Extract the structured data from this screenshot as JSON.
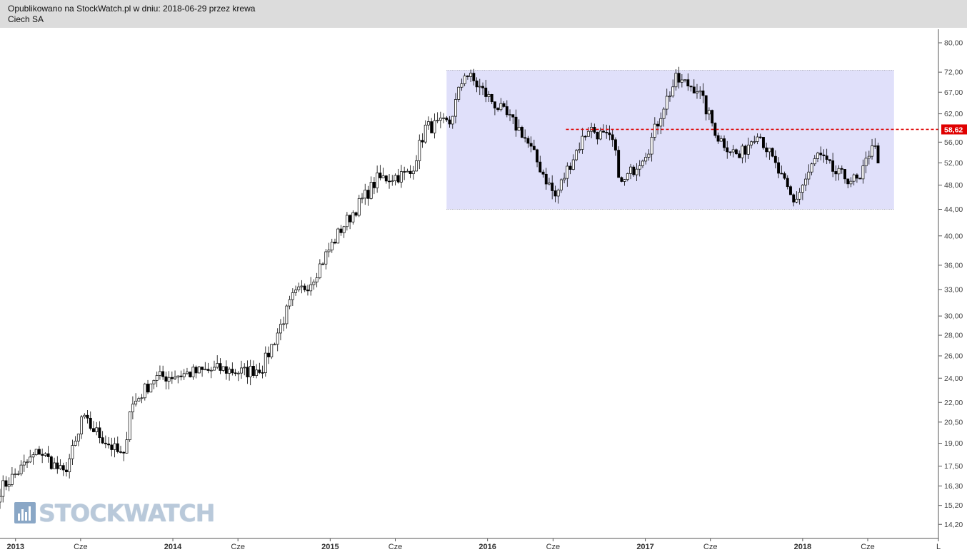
{
  "header": {
    "line1": "Opublikowano na StockWatch.pl w dniu: 2018-06-29 przez krewa",
    "line2": "Ciech SA"
  },
  "watermark": {
    "text": "STOCKWATCH",
    "icon": "bar-chart-icon"
  },
  "chart_data": {
    "type": "candlestick",
    "title": "Ciech SA",
    "y_scale": "log",
    "ylim": [
      13.85,
      82.5
    ],
    "xlim": [
      "2012-11-26",
      "2018-11-12"
    ],
    "y_ticks": [
      {
        "v": 80,
        "label": "80,00"
      },
      {
        "v": 72,
        "label": "72,00"
      },
      {
        "v": 67,
        "label": "67,00"
      },
      {
        "v": 62,
        "label": "62,00"
      },
      {
        "v": 56,
        "label": "56,00"
      },
      {
        "v": 52,
        "label": "52,00"
      },
      {
        "v": 48,
        "label": "48,00"
      },
      {
        "v": 44,
        "label": "44,00"
      },
      {
        "v": 40,
        "label": "40,00"
      },
      {
        "v": 36,
        "label": "36,00"
      },
      {
        "v": 33,
        "label": "33,00"
      },
      {
        "v": 30,
        "label": "30,00"
      },
      {
        "v": 28,
        "label": "28,00"
      },
      {
        "v": 26,
        "label": "26,00"
      },
      {
        "v": 24,
        "label": "24,00"
      },
      {
        "v": 22,
        "label": "22,00"
      },
      {
        "v": 20.5,
        "label": "20,50"
      },
      {
        "v": 19,
        "label": "19,00"
      },
      {
        "v": 17.5,
        "label": "17,50"
      },
      {
        "v": 16.3,
        "label": "16,30"
      },
      {
        "v": 15.2,
        "label": "15,20"
      },
      {
        "v": 14.2,
        "label": "14,20"
      }
    ],
    "x_ticks": [
      {
        "date": "2013-01-01",
        "label": "2013",
        "year": true
      },
      {
        "date": "2013-06-01",
        "label": "Cze",
        "year": false
      },
      {
        "date": "2014-01-01",
        "label": "2014",
        "year": true
      },
      {
        "date": "2014-06-01",
        "label": "Cze",
        "year": false
      },
      {
        "date": "2015-01-01",
        "label": "2015",
        "year": true
      },
      {
        "date": "2015-06-01",
        "label": "Cze",
        "year": false
      },
      {
        "date": "2016-01-01",
        "label": "2016",
        "year": true
      },
      {
        "date": "2016-06-01",
        "label": "Cze",
        "year": false
      },
      {
        "date": "2017-01-01",
        "label": "2017",
        "year": true
      },
      {
        "date": "2017-06-01",
        "label": "Cze",
        "year": false
      },
      {
        "date": "2018-01-01",
        "label": "2018",
        "year": true
      },
      {
        "date": "2018-06-01",
        "label": "Cze",
        "year": false
      },
      {
        "date": "2018-11-12",
        "label": "L",
        "year": false
      }
    ],
    "price_label": {
      "value": 58.62,
      "label": "58,62",
      "color": "#e00000"
    },
    "resistance_line": {
      "value": 58.62,
      "from": "2016-07-01",
      "color": "#e00000",
      "style": "dashed"
    },
    "range_box": {
      "from": "2015-09-28",
      "to": "2018-08-01",
      "low": 44.0,
      "high": 72.5,
      "fill": "#e0e0fa"
    },
    "weekly_closes": [
      {
        "date": "2012-11-26",
        "close": 16.1
      },
      {
        "date": "2013-02-25",
        "close": 18.5
      },
      {
        "date": "2013-04-22",
        "close": 17.0
      },
      {
        "date": "2013-05-27",
        "close": 19.5
      },
      {
        "date": "2013-06-03",
        "close": 20.8
      },
      {
        "date": "2013-09-09",
        "close": 18.0
      },
      {
        "date": "2013-09-23",
        "close": 21.5
      },
      {
        "date": "2013-11-18",
        "close": 24.0
      },
      {
        "date": "2014-04-21",
        "close": 24.8
      },
      {
        "date": "2014-06-16",
        "close": 24.5
      },
      {
        "date": "2014-07-28",
        "close": 25.0
      },
      {
        "date": "2014-10-06",
        "close": 32.0
      },
      {
        "date": "2014-11-17",
        "close": 34.0
      },
      {
        "date": "2015-01-26",
        "close": 41.0
      },
      {
        "date": "2015-04-20",
        "close": 49.0
      },
      {
        "date": "2015-07-06",
        "close": 50.0
      },
      {
        "date": "2015-08-10",
        "close": 59.0
      },
      {
        "date": "2015-10-05",
        "close": 60.0
      },
      {
        "date": "2015-11-09",
        "close": 72.0
      },
      {
        "date": "2016-03-21",
        "close": 58.0
      },
      {
        "date": "2016-06-06",
        "close": 46.0
      },
      {
        "date": "2016-07-11",
        "close": 52.0
      },
      {
        "date": "2016-08-22",
        "close": 59.0
      },
      {
        "date": "2016-10-17",
        "close": 56.0
      },
      {
        "date": "2016-11-07",
        "close": 48.0
      },
      {
        "date": "2017-01-09",
        "close": 55.0
      },
      {
        "date": "2017-02-13",
        "close": 64.0
      },
      {
        "date": "2017-03-13",
        "close": 70.0
      },
      {
        "date": "2017-05-01",
        "close": 68.0
      },
      {
        "date": "2017-06-19",
        "close": 57.0
      },
      {
        "date": "2017-08-07",
        "close": 53.0
      },
      {
        "date": "2017-09-18",
        "close": 58.5
      },
      {
        "date": "2017-10-23",
        "close": 52.5
      },
      {
        "date": "2017-12-11",
        "close": 45.0
      },
      {
        "date": "2018-02-05",
        "close": 53.5
      },
      {
        "date": "2018-03-19",
        "close": 50.0
      },
      {
        "date": "2018-05-14",
        "close": 48.5
      },
      {
        "date": "2018-06-11",
        "close": 56.0
      },
      {
        "date": "2018-06-25",
        "close": 53.0
      }
    ]
  }
}
